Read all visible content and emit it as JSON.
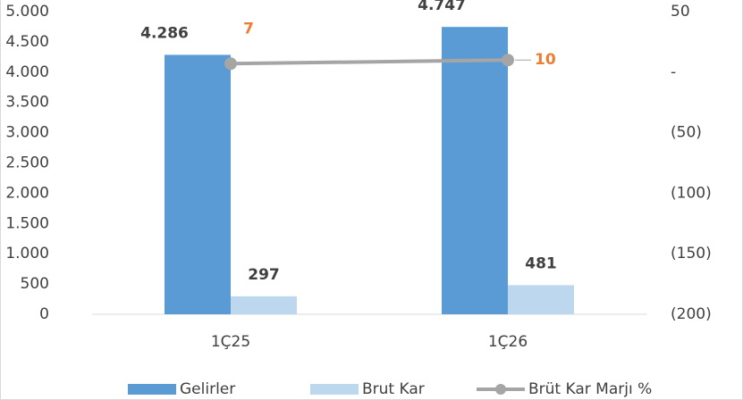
{
  "chart_data": {
    "type": "bar",
    "categories": [
      "1Ç25",
      "1Ç26"
    ],
    "series": [
      {
        "name": "Gelirler",
        "color": "#5b9bd5",
        "values": [
          4286,
          4747
        ],
        "value_labels": [
          "4.286",
          "4.747"
        ]
      },
      {
        "name": "Brut Kar",
        "color": "#bdd7ee",
        "values": [
          297,
          481
        ],
        "value_labels": [
          "297",
          "481"
        ]
      },
      {
        "name": "Brüt Kar Marjı %",
        "type": "line",
        "axis": "y2",
        "color": "#a5a5a5",
        "label_color": "#ed7d31",
        "values": [
          7,
          10
        ],
        "value_labels": [
          "7",
          "10"
        ]
      }
    ],
    "ylim": [
      0,
      5000
    ],
    "yticks": [
      0,
      500,
      {
        "value": 1000,
        "label": "1.000"
      },
      {
        "value": 1500,
        "label": "1.500"
      },
      {
        "value": 2000,
        "label": "2.000"
      },
      {
        "value": 2500,
        "label": "2.500"
      },
      {
        "value": 3000,
        "label": "3.000"
      },
      {
        "value": 3500,
        "label": "3.500"
      },
      {
        "value": 4000,
        "label": "4.000"
      },
      {
        "value": 4500,
        "label": "4.500"
      },
      {
        "value": 5000,
        "label": "5.000"
      }
    ],
    "y2lim": [
      -200,
      50
    ],
    "y2ticks": [
      {
        "value": -200,
        "label": "(200)"
      },
      {
        "value": -150,
        "label": "(150)"
      },
      {
        "value": -100,
        "label": "(100)"
      },
      {
        "value": -50,
        "label": "(50)"
      },
      {
        "value": 0,
        "label": "-"
      },
      50
    ],
    "legend": "bottom"
  }
}
